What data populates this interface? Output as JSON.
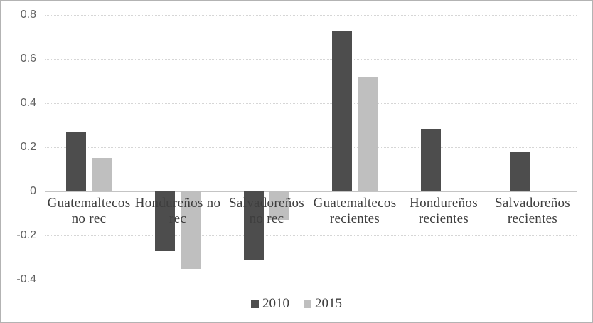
{
  "chart_data": {
    "type": "bar",
    "categories": [
      "Guatemaltecos no rec",
      "Hondureños no rec",
      "Salvadoreños no rec",
      "Guatemaltecos recientes",
      "Hondureños recientes",
      "Salvadoreños recientes"
    ],
    "category_label_lines": [
      [
        "Guatemaltecos",
        "no rec"
      ],
      [
        "Hondureños no",
        "rec"
      ],
      [
        "Salvadoreños",
        "no rec"
      ],
      [
        "Guatemaltecos",
        "recientes"
      ],
      [
        "Hondureños",
        "recientes"
      ],
      [
        "Salvadoreños",
        "recientes"
      ]
    ],
    "series": [
      {
        "name": "2010",
        "color": "#4d4d4d",
        "values": [
          0.27,
          -0.27,
          -0.31,
          0.73,
          0.28,
          0.18
        ]
      },
      {
        "name": "2015",
        "color": "#bfbfbf",
        "values": [
          0.15,
          -0.35,
          -0.13,
          0.52,
          0,
          0
        ]
      }
    ],
    "title": "",
    "xlabel": "",
    "ylabel": "",
    "ylim": [
      -0.4,
      0.8
    ],
    "yticks": [
      0.8,
      0.6,
      0.4,
      0.2,
      0,
      -0.2,
      -0.4
    ],
    "ytick_labels": [
      "0.8",
      "0.6",
      "0.4",
      "0.2",
      "0",
      "-0.2",
      "-0.4"
    ],
    "grid": "horizontal-dotted",
    "legend_position": "bottom-center"
  },
  "colors": {
    "series_2010": "#4d4d4d",
    "series_2015": "#bfbfbf",
    "gridline": "#d6d6d6",
    "axis_line": "#c4c4c4",
    "tick_text": "#616161",
    "category_text": "#3e3e3e",
    "frame_border": "#b3b3b3",
    "background": "#ffffff"
  }
}
